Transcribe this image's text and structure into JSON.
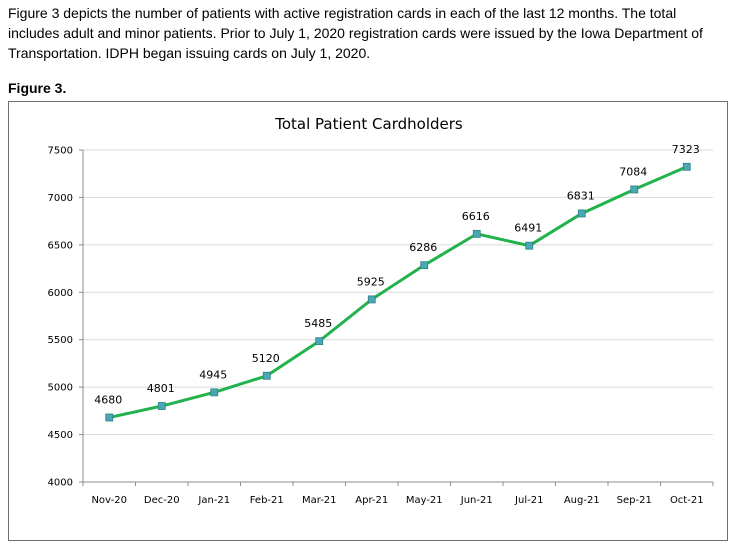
{
  "intro": "Figure 3 depicts the number of patients with active registration cards in each of the last 12 months. The total includes adult and minor patients. Prior to July 1, 2020 registration cards were issued by the Iowa Department of Transportation. IDPH began issuing cards on July 1, 2020.",
  "figure_label": "Figure 3.",
  "chart_data": {
    "type": "line",
    "title": "Total Patient Cardholders",
    "xlabel": "",
    "ylabel": "",
    "categories": [
      "Nov-20",
      "Dec-20",
      "Jan-21",
      "Feb-21",
      "Mar-21",
      "Apr-21",
      "May-21",
      "Jun-21",
      "Jul-21",
      "Aug-21",
      "Sep-21",
      "Oct-21"
    ],
    "values": [
      4680,
      4801,
      4945,
      5120,
      5485,
      5925,
      6286,
      6616,
      6491,
      6831,
      7084,
      7323
    ],
    "ylim": [
      4000,
      7500
    ],
    "yticks": [
      4000,
      4500,
      5000,
      5500,
      6000,
      6500,
      7000,
      7500
    ],
    "grid": true,
    "legend": "none",
    "line_color": "#22b24c",
    "marker_color": "#4aa8b4"
  }
}
